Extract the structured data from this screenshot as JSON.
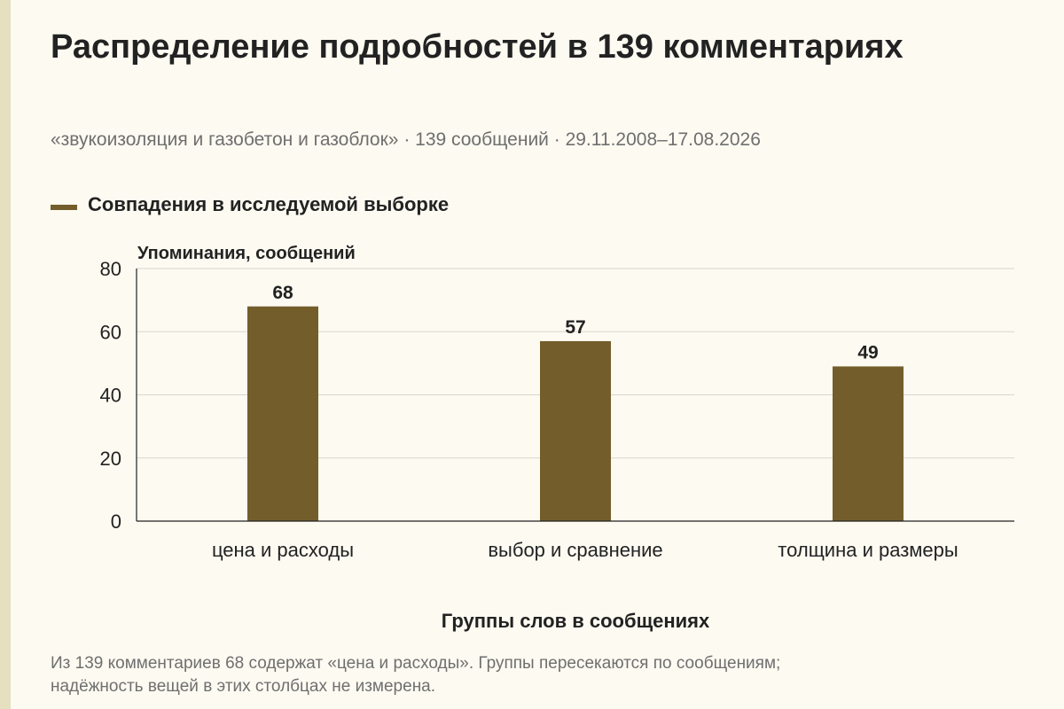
{
  "title": "Распределение подробностей в 139 комментариях",
  "subtitle": "«звукоизоляция и газобетон и газоблок» · 139 сообщений · 29.11.2008–17.08.2026",
  "footnote_line1": "Из 139 комментариев 68 содержат «цена и расходы». Группы пересекаются по сообщениям;",
  "footnote_line2": "надёжность вещей в этих столбцах не измерена.",
  "colors": {
    "bar": "#735e2b",
    "background": "#fcfaf1",
    "grid": "#d9d6cc",
    "axis": "#222222"
  },
  "chart_data": {
    "type": "bar",
    "categories": [
      "цена и расходы",
      "выбор и сравнение",
      "толщина и размеры"
    ],
    "series": [
      {
        "name": "Совпадения в исследуемой выборке",
        "values": [
          68,
          57,
          49
        ]
      }
    ],
    "ylabel": "Упоминания, сообщений",
    "xlabel": "Группы слов в сообщениях",
    "ylim": [
      0,
      80
    ],
    "yticks": [
      0,
      20,
      40,
      60,
      80
    ],
    "grid": true,
    "legend": "top-left",
    "data_labels": true
  }
}
